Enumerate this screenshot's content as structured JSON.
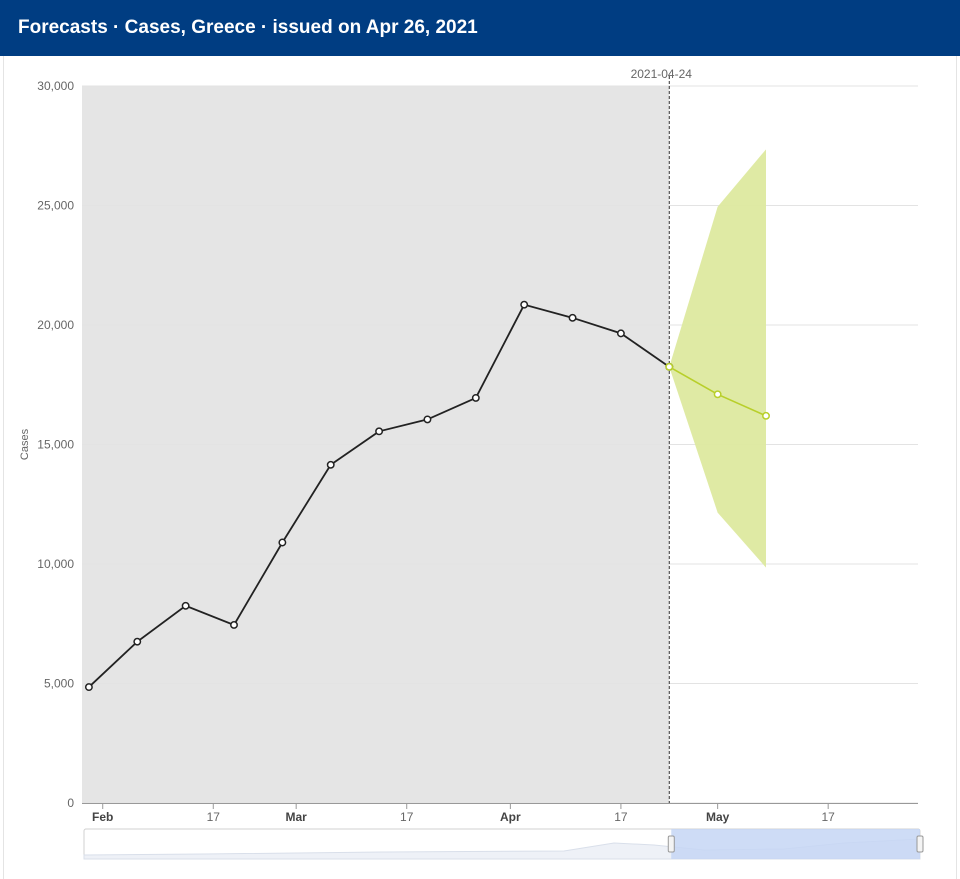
{
  "header": {
    "title": "Forecasts · Cases, Greece  · issued on Apr 26, 2021"
  },
  "chart_data": {
    "type": "line",
    "title": "Forecasts · Cases, Greece  · issued on Apr 26, 2021",
    "ylabel": "Cases",
    "xlabel": "",
    "ylim": [
      0,
      30000
    ],
    "xlim": [
      "2021-01-29",
      "2021-05-30"
    ],
    "y_ticks": [
      0,
      5000,
      10000,
      15000,
      20000,
      25000,
      30000
    ],
    "y_tick_labels": [
      "0",
      "5,000",
      "10,000",
      "15,000",
      "20,000",
      "25,000",
      "30,000"
    ],
    "x_ticks": [
      {
        "date": "2021-02-01",
        "label": "Feb",
        "bold": true
      },
      {
        "date": "2021-02-17",
        "label": "17",
        "bold": false
      },
      {
        "date": "2021-03-01",
        "label": "Mar",
        "bold": true
      },
      {
        "date": "2021-03-17",
        "label": "17",
        "bold": false
      },
      {
        "date": "2021-04-01",
        "label": "Apr",
        "bold": true
      },
      {
        "date": "2021-04-17",
        "label": "17",
        "bold": false
      },
      {
        "date": "2021-05-01",
        "label": "May",
        "bold": true
      },
      {
        "date": "2021-05-17",
        "label": "17",
        "bold": false
      }
    ],
    "cutoff": {
      "date": "2021-04-24",
      "label": "2021-04-24"
    },
    "grid": true,
    "series": [
      {
        "kind": "observed",
        "color": "#222222",
        "points": [
          {
            "x": "2021-01-30",
            "y": 4850
          },
          {
            "x": "2021-02-06",
            "y": 6750
          },
          {
            "x": "2021-02-13",
            "y": 8250
          },
          {
            "x": "2021-02-20",
            "y": 7450
          },
          {
            "x": "2021-02-27",
            "y": 10900
          },
          {
            "x": "2021-03-06",
            "y": 14150
          },
          {
            "x": "2021-03-13",
            "y": 15550
          },
          {
            "x": "2021-03-20",
            "y": 16050
          },
          {
            "x": "2021-03-27",
            "y": 16950
          },
          {
            "x": "2021-04-03",
            "y": 20850
          },
          {
            "x": "2021-04-10",
            "y": 20300
          },
          {
            "x": "2021-04-17",
            "y": 19650
          },
          {
            "x": "2021-04-24",
            "y": 18250
          }
        ]
      },
      {
        "kind": "forecast",
        "color": "#b8cf2a",
        "interval_color": "#dde99f",
        "points": [
          {
            "x": "2021-04-24",
            "y": 18250,
            "lower": 18250,
            "upper": 18250
          },
          {
            "x": "2021-05-01",
            "y": 17100,
            "lower": 12150,
            "upper": 24950
          },
          {
            "x": "2021-05-08",
            "y": 16200,
            "lower": 9850,
            "upper": 27350
          }
        ]
      }
    ]
  },
  "navigator": {
    "range_start": "2021-04-24",
    "range_end": "2021-05-30"
  }
}
